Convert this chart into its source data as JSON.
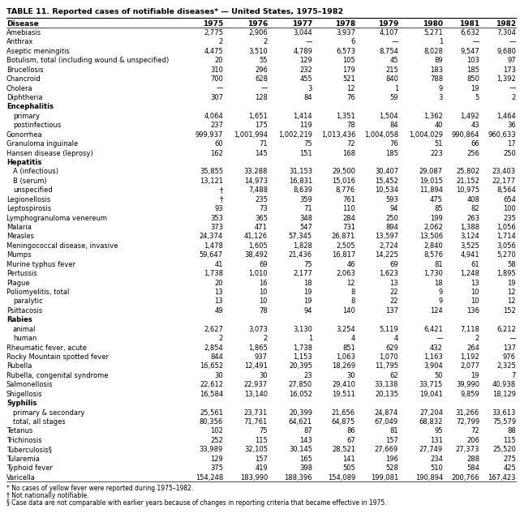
{
  "title": "TABLE 11. Reported cases of notifiable diseases* — United States, 1975–1982",
  "columns": [
    "Disease",
    "1975",
    "1976",
    "1977",
    "1978",
    "1979",
    "1980",
    "1981",
    "1982"
  ],
  "rows": [
    [
      "Amebiasis",
      "2,775",
      "2,906",
      "3,044",
      "3,937",
      "4,107",
      "5,271",
      "6,632",
      "7,304"
    ],
    [
      "Anthrax",
      "2",
      "2",
      "—",
      "6",
      "—",
      "1",
      "—",
      "—"
    ],
    [
      "Aseptic meningitis",
      "4,475",
      "3,510",
      "4,789",
      "6,573",
      "8,754",
      "8,028",
      "9,547",
      "9,680"
    ],
    [
      "Botulism, total (including wound & unspecified)",
      "20",
      "55",
      "129",
      "105",
      "45",
      "89",
      "103",
      "97"
    ],
    [
      "Brucellosis",
      "310",
      "296",
      "232",
      "179",
      "215",
      "183",
      "185",
      "173"
    ],
    [
      "Chancroid",
      "700",
      "628",
      "455",
      "521",
      "840",
      "788",
      "850",
      "1,392"
    ],
    [
      "Cholera",
      "—",
      "—",
      "3",
      "12",
      "1",
      "9",
      "19",
      "—"
    ],
    [
      "Diphtheria",
      "307",
      "128",
      "84",
      "76",
      "59",
      "3",
      "5",
      "2"
    ],
    [
      "Encephalitis",
      "",
      "",
      "",
      "",
      "",
      "",
      "",
      ""
    ],
    [
      " primary",
      "4,064",
      "1,651",
      "1,414",
      "1,351",
      "1,504",
      "1,362",
      "1,492",
      "1,464"
    ],
    [
      " postinfectious",
      "237",
      "175",
      "119",
      "78",
      "84",
      "40",
      "43",
      "36"
    ],
    [
      "Gonorrhea",
      "999,937",
      "1,001,994",
      "1,002,219",
      "1,013,436",
      "1,004,058",
      "1,004,029",
      "990,864",
      "960,633"
    ],
    [
      "Granuloma inguinale",
      "60",
      "71",
      "75",
      "72",
      "76",
      "51",
      "66",
      "17"
    ],
    [
      "Hansen disease (leprosy)",
      "162",
      "145",
      "151",
      "168",
      "185",
      "223",
      "256",
      "250"
    ],
    [
      "Hepatitis",
      "",
      "",
      "",
      "",
      "",
      "",
      "",
      ""
    ],
    [
      " A (infectious)",
      "35,855",
      "33,288",
      "31,153",
      "29,500",
      "30,407",
      "29,087",
      "25,802",
      "23,403"
    ],
    [
      " B (serum)",
      "13,121",
      "14,973",
      "16,831",
      "15,016",
      "15,452",
      "19,015",
      "21,152",
      "22,177"
    ],
    [
      " unspecified",
      "†",
      "7,488",
      "8,639",
      "8,776",
      "10,534",
      "11,894",
      "10,975",
      "8,564"
    ],
    [
      "Legionellosis",
      "†",
      "235",
      "359",
      "761",
      "593",
      "475",
      "408",
      "654"
    ],
    [
      "Leptospirosis",
      "93",
      "73",
      "71",
      "110",
      "94",
      "85",
      "82",
      "100"
    ],
    [
      "Lymphogranuloma venereum",
      "353",
      "365",
      "348",
      "284",
      "250",
      "199",
      "263",
      "235"
    ],
    [
      "Malaria",
      "373",
      "471",
      "547",
      "731",
      "894",
      "2,062",
      "1,388",
      "1,056"
    ],
    [
      "Measles",
      "24,374",
      "41,126",
      "57,345",
      "26,871",
      "13,597",
      "13,506",
      "3,124",
      "1,714"
    ],
    [
      "Meningococcal disease, invasive",
      "1,478",
      "1,605",
      "1,828",
      "2,505",
      "2,724",
      "2,840",
      "3,525",
      "3,056"
    ],
    [
      "Mumps",
      "59,647",
      "38,492",
      "21,436",
      "16,817",
      "14,225",
      "8,576",
      "4,941",
      "5,270"
    ],
    [
      "Murine typhus fever",
      "41",
      "69",
      "75",
      "46",
      "69",
      "81",
      "61",
      "58"
    ],
    [
      "Pertussis",
      "1,738",
      "1,010",
      "2,177",
      "2,063",
      "1,623",
      "1,730",
      "1,248",
      "1,895"
    ],
    [
      "Plague",
      "20",
      "16",
      "18",
      "12",
      "13",
      "18",
      "13",
      "19"
    ],
    [
      "Poliomyelitis, total",
      "13",
      "10",
      "19",
      "8",
      "22",
      "9",
      "10",
      "12"
    ],
    [
      " paralytic",
      "13",
      "10",
      "19",
      "8",
      "22",
      "9",
      "10",
      "12"
    ],
    [
      "Psittacosis",
      "49",
      "78",
      "94",
      "140",
      "137",
      "124",
      "136",
      "152"
    ],
    [
      "Rabies",
      "",
      "",
      "",
      "",
      "",
      "",
      "",
      ""
    ],
    [
      " animal",
      "2,627",
      "3,073",
      "3,130",
      "3,254",
      "5,119",
      "6,421",
      "7,118",
      "6,212"
    ],
    [
      " human",
      "2",
      "2",
      "1",
      "4",
      "4",
      "—",
      "2",
      "—"
    ],
    [
      "Rheumatic fever, acute",
      "2,854",
      "1,865",
      "1,738",
      "851",
      "629",
      "432",
      "264",
      "137"
    ],
    [
      "Rocky Mountain spotted fever",
      "844",
      "937",
      "1,153",
      "1,063",
      "1,070",
      "1,163",
      "1,192",
      "976"
    ],
    [
      "Rubella",
      "16,652",
      "12,491",
      "20,395",
      "18,269",
      "11,795",
      "3,904",
      "2,077",
      "2,325"
    ],
    [
      "Rubella, congenital syndrome",
      "30",
      "30",
      "23",
      "30",
      "62",
      "50",
      "19",
      "7"
    ],
    [
      "Salmonellosis",
      "22,612",
      "22,937",
      "27,850",
      "29,410",
      "33,138",
      "33,715",
      "39,990",
      "40,938"
    ],
    [
      "Shigellosis",
      "16,584",
      "13,140",
      "16,052",
      "19,511",
      "20,135",
      "19,041",
      "9,859",
      "18,129"
    ],
    [
      "Syphilis",
      "",
      "",
      "",
      "",
      "",
      "",
      "",
      ""
    ],
    [
      " primary & secondary",
      "25,561",
      "23,731",
      "20,399",
      "21,656",
      "24,874",
      "27,204",
      "31,266",
      "33,613"
    ],
    [
      " total, all stages",
      "80,356",
      "71,761",
      "64,621",
      "64,875",
      "67,049",
      "68,832",
      "72,799",
      "75,579"
    ],
    [
      "Tetanus",
      "102",
      "75",
      "87",
      "86",
      "81",
      "95",
      "72",
      "88"
    ],
    [
      "Trichinosis",
      "252",
      "115",
      "143",
      "67",
      "157",
      "131",
      "206",
      "115"
    ],
    [
      "Tuberculosis§",
      "33,989",
      "32,105",
      "30,145",
      "28,521",
      "27,669",
      "27,749",
      "27,373",
      "25,520"
    ],
    [
      "Tularemia",
      "129",
      "157",
      "165",
      "141",
      "196",
      "234",
      "288",
      "275"
    ],
    [
      "Typhoid fever",
      "375",
      "419",
      "398",
      "505",
      "528",
      "510",
      "584",
      "425"
    ],
    [
      "Varicella",
      "154,248",
      "183,990",
      "188,396",
      "154,089",
      "199,081",
      "190,894",
      "200,766",
      "167,423"
    ]
  ],
  "footnotes": [
    "* No cases of yellow fever were reported during 1975–1982.",
    "† Not nationally notifiable.",
    "§ Case data are not comparable with earlier years because of changes in reporting criteria that became effective in 1975."
  ],
  "category_rows": [
    8,
    14,
    31,
    40
  ],
  "title_fontsize": 6.8,
  "header_fontsize": 6.5,
  "data_fontsize": 6.0,
  "footnote_fontsize": 5.5,
  "text_color": "#000000",
  "bg_color": "#ffffff"
}
